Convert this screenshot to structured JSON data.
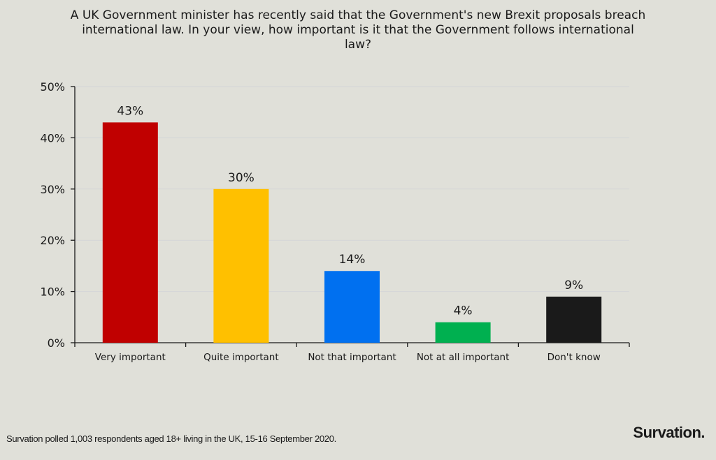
{
  "chart_data": {
    "type": "bar",
    "title": "A UK Government minister has recently said that the Government's new Brexit proposals breach international law. In your view, how important is it that the Government follows international law?",
    "categories": [
      "Very important",
      "Quite important",
      "Not that important",
      "Not at all important",
      "Don't know"
    ],
    "values": [
      43,
      30,
      14,
      4,
      9
    ],
    "data_labels": [
      "43%",
      "30%",
      "14%",
      "4%",
      "9%"
    ],
    "colors": [
      "#c00000",
      "#ffc000",
      "#0070f0",
      "#00b050",
      "#1a1a1a"
    ],
    "ylim": [
      0,
      50
    ],
    "yticks": [
      0,
      10,
      20,
      30,
      40,
      50
    ],
    "ytick_labels": [
      "0%",
      "10%",
      "20%",
      "30%",
      "40%",
      "50%"
    ],
    "xlabel": "",
    "ylabel": "",
    "grid": true,
    "legend": "none"
  },
  "footnote": "Survation polled 1,003 respondents aged 18+ living in the UK, 15-16 September 2020.",
  "logo": "Survation."
}
